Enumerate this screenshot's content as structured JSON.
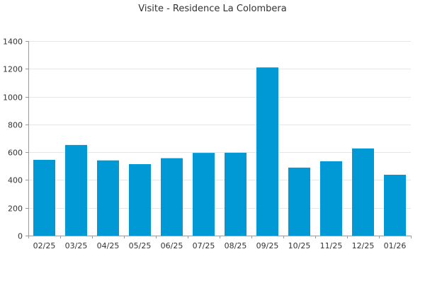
{
  "chart_data": {
    "type": "bar",
    "title": "Visite - Residence La Colombera",
    "categories": [
      "02/25",
      "03/25",
      "04/25",
      "05/25",
      "06/25",
      "07/25",
      "08/25",
      "09/25",
      "10/25",
      "11/25",
      "12/25",
      "01/26"
    ],
    "values": [
      545,
      652,
      541,
      514,
      557,
      595,
      596,
      1210,
      489,
      535,
      627,
      438
    ],
    "ylim": [
      0,
      1400
    ],
    "yticks": [
      0,
      200,
      400,
      600,
      800,
      1000,
      1200,
      1400
    ],
    "bar_color": "#0099d6",
    "grid": true,
    "xlabel": "",
    "ylabel": ""
  }
}
